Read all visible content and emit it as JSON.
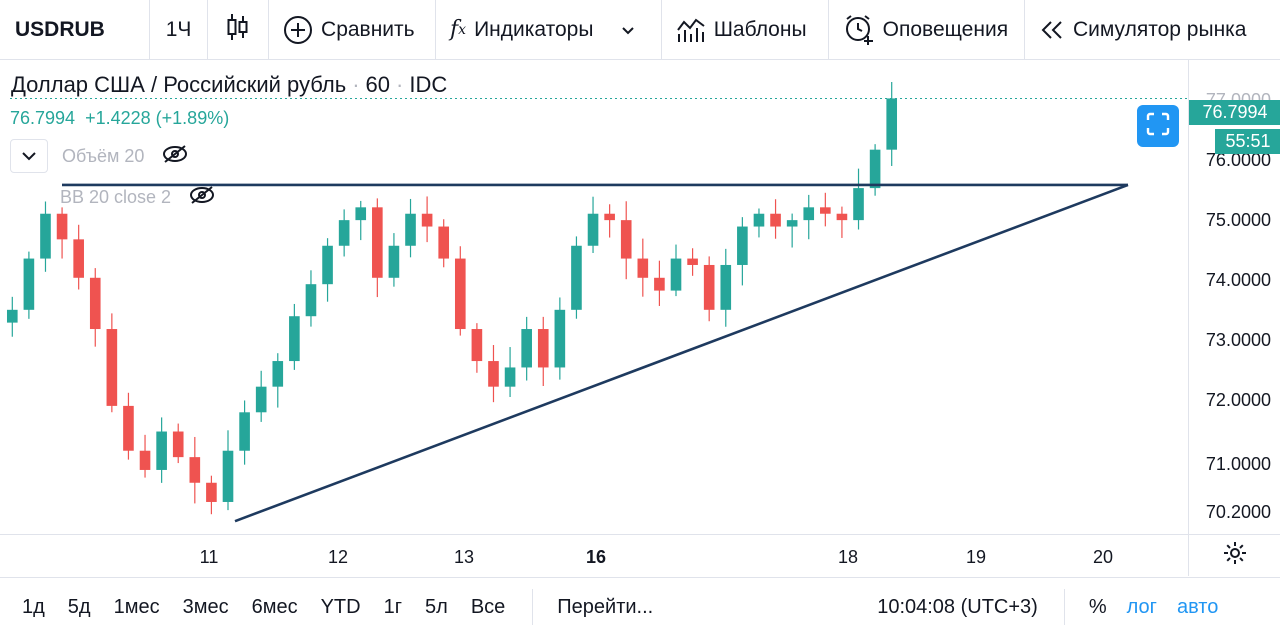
{
  "toolbar": {
    "symbol": "USDRUB",
    "interval": "1Ч",
    "compare": "Сравнить",
    "indicators": "Индикаторы",
    "templates": "Шаблоны",
    "alerts": "Оповещения",
    "replay": "Симулятор рынка"
  },
  "legend": {
    "title": "Доллар США / Российский рубль",
    "interval": "60",
    "source": "IDC",
    "price": "76.7994",
    "change": "+1.4228 (+1.89%)",
    "volume": "Объём 20",
    "bb": "BB 20 close 2"
  },
  "price_scale": {
    "labels": [
      "77.0000",
      "76.0000",
      "75.0000",
      "74.0000",
      "73.0000",
      "72.0000",
      "71.0000",
      "70.2000"
    ],
    "last_price": "76.7994",
    "countdown": "55:51"
  },
  "time_axis": {
    "labels": [
      "11",
      "12",
      "13",
      "16",
      "18",
      "19",
      "20"
    ]
  },
  "bottom": {
    "ranges": [
      "1д",
      "5д",
      "1мес",
      "3мес",
      "6мес",
      "YTD",
      "1г",
      "5л",
      "Все"
    ],
    "goto": "Перейти...",
    "clock": "10:04:08 (UTC+3)",
    "percent": "%",
    "log": "лог",
    "auto": "авто"
  },
  "colors": {
    "up": "#26a69a",
    "down": "#ef5350",
    "line": "#1e3a5f",
    "accent": "#2196f3"
  },
  "chart_data": {
    "type": "candlestick",
    "ylim": [
      70.0,
      77.4
    ],
    "closes": [
      73.5,
      74.3,
      75.0,
      74.6,
      74.0,
      73.2,
      72.0,
      71.3,
      71.0,
      71.6,
      71.2,
      70.8,
      70.5,
      71.3,
      71.9,
      72.3,
      72.7,
      73.4,
      73.9,
      74.5,
      74.9,
      75.1,
      74.0,
      74.5,
      75.0,
      74.8,
      74.3,
      73.2,
      72.7,
      72.3,
      72.6,
      73.2,
      72.6,
      73.5,
      74.5,
      75.0,
      74.9,
      74.3,
      74.0,
      73.8,
      74.3,
      74.2,
      73.5,
      74.2,
      74.8,
      75.0,
      74.8,
      74.9,
      75.1,
      75.0,
      74.9,
      75.4,
      76.0,
      76.8
    ],
    "resistance": 75.45,
    "support_from": {
      "day": "11",
      "value": 70.2
    },
    "support_to": {
      "day": "20",
      "value": 75.45
    }
  }
}
